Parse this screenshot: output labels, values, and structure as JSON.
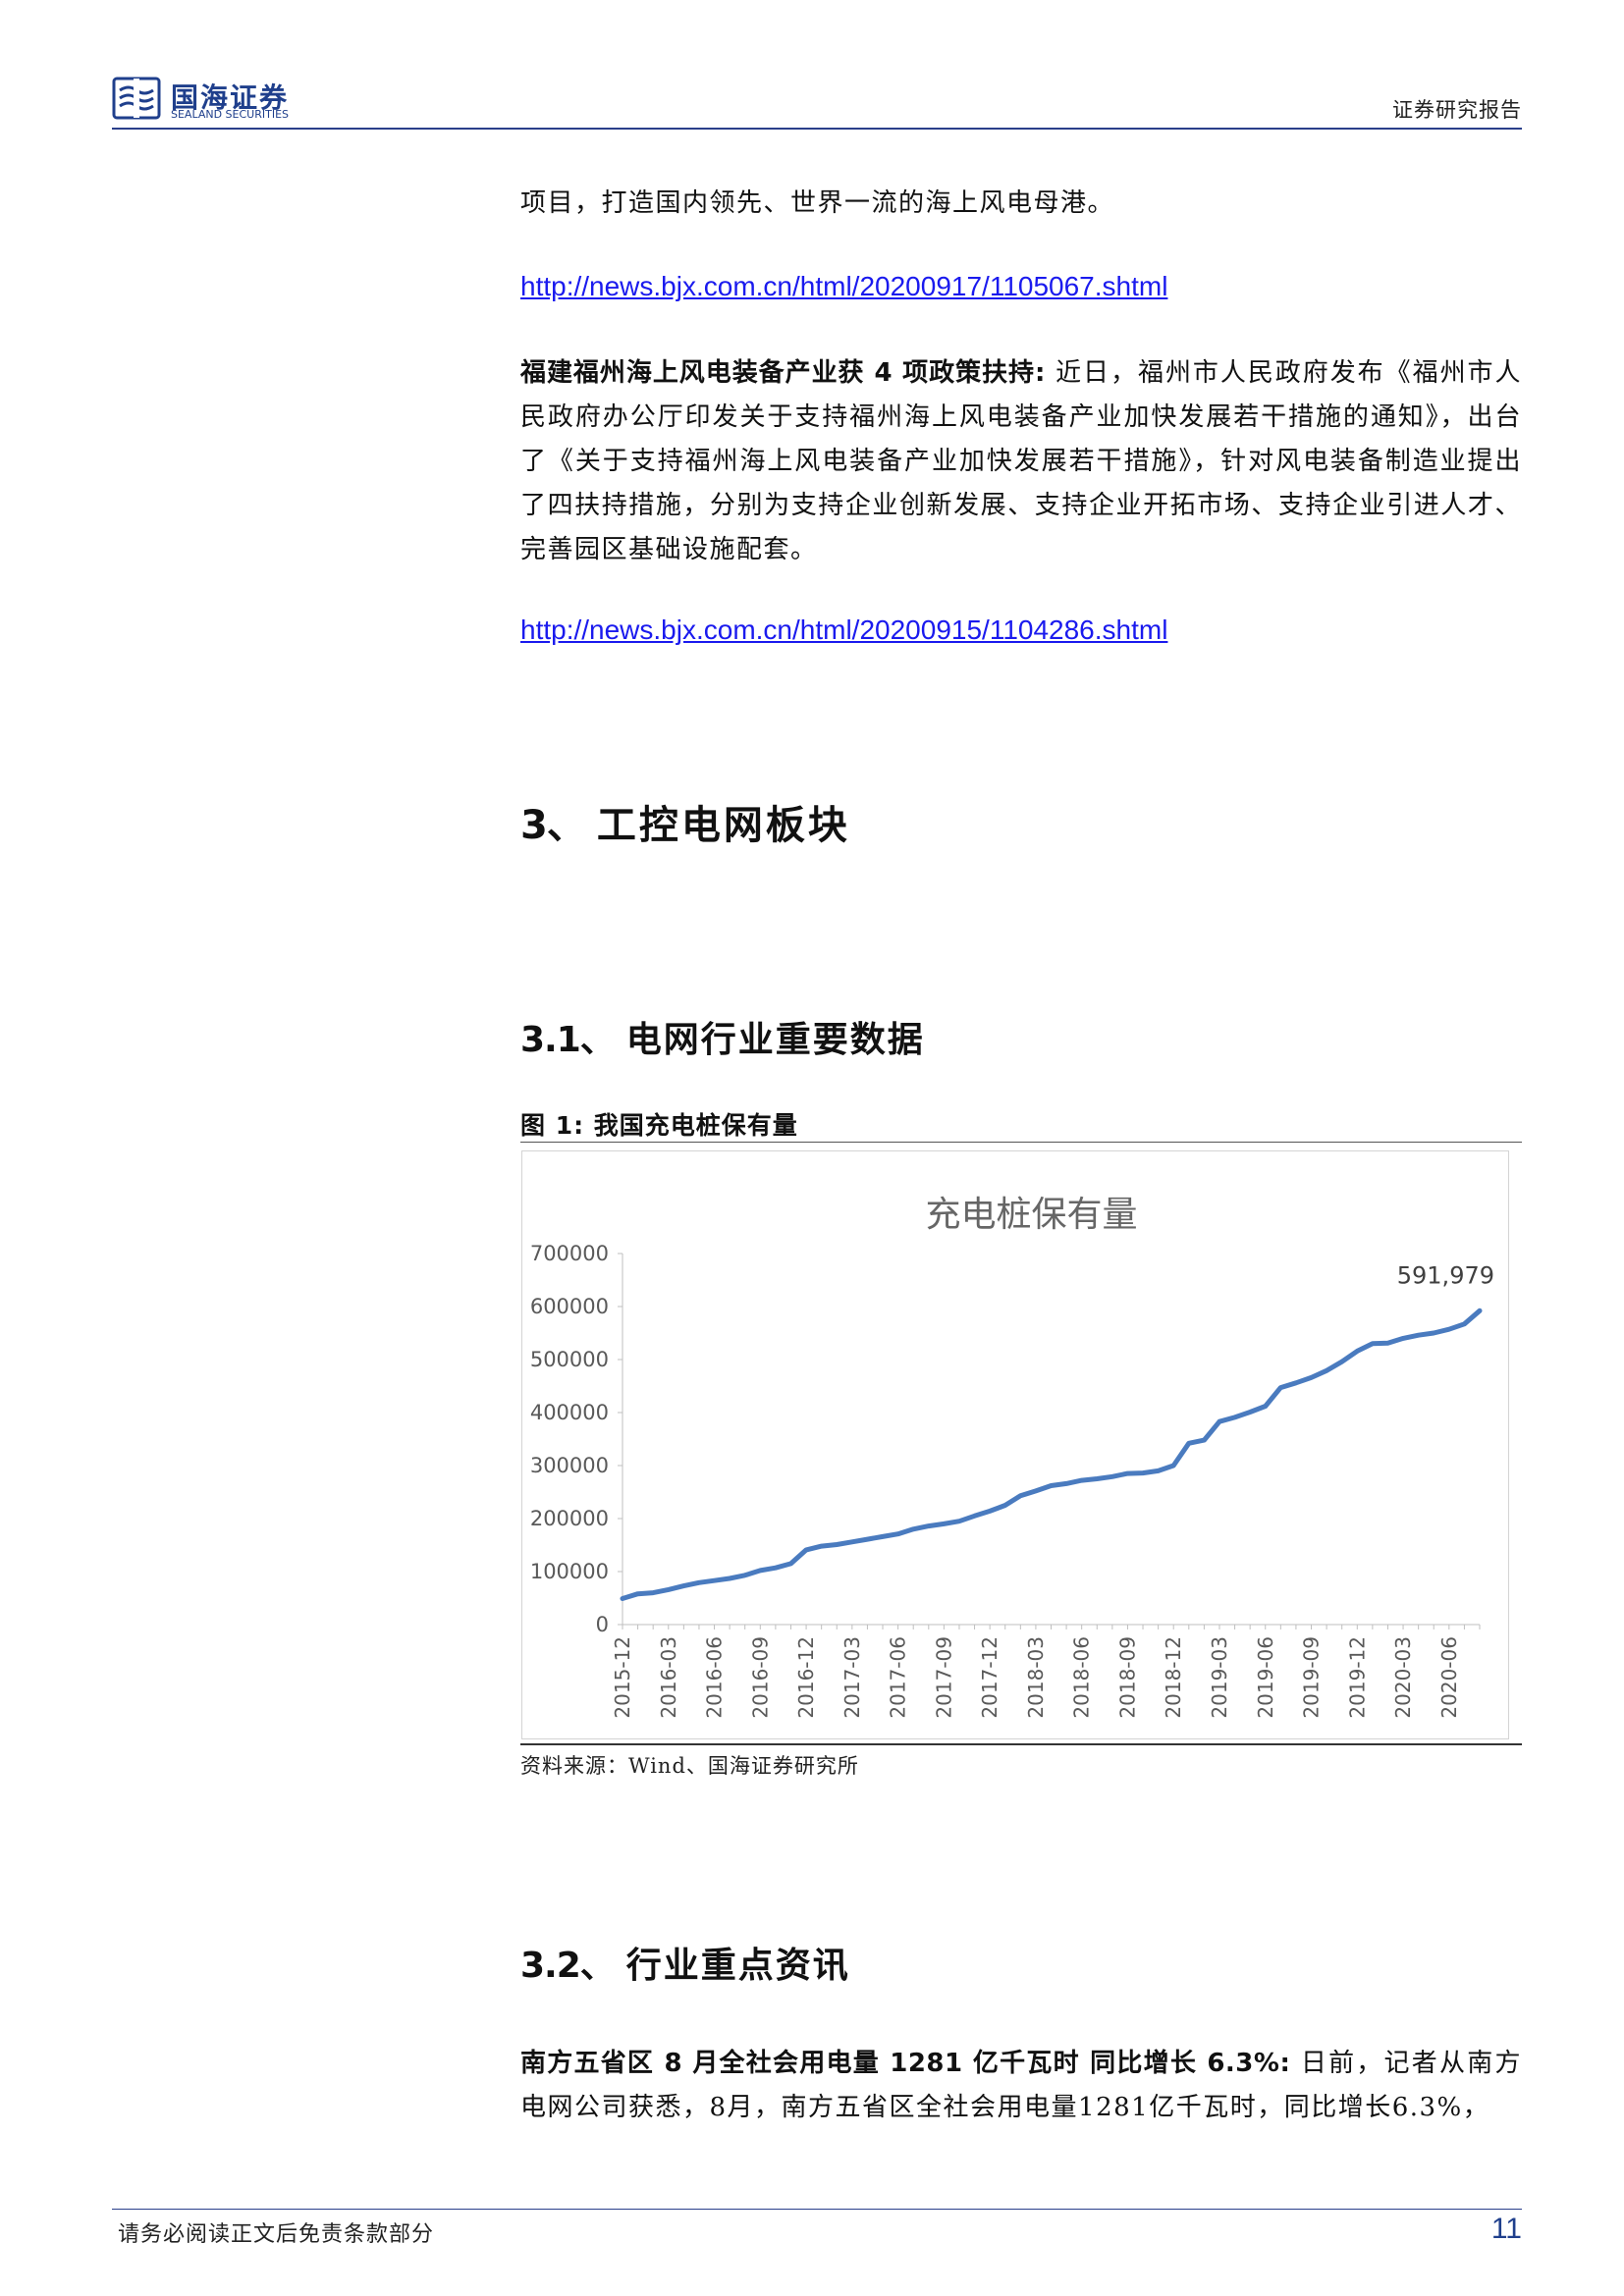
{
  "header": {
    "logo_cn": "国海证券",
    "logo_en": "SEALAND SECURITIES",
    "right": "证券研究报告"
  },
  "content": {
    "para1": "项目，打造国内领先、世界一流的海上风电母港。",
    "link1": "http://news.bjx.com.cn/html/20200917/1105067.shtml",
    "para2_bold": "福建福州海上风电装备产业获 4 项政策扶持:",
    "para2_text": "近日，福州市人民政府发布《福州市人民政府办公厅印发关于支持福州海上风电装备产业加快发展若干措施的通知》，出台了《关于支持福州海上风电装备产业加快发展若干措施》，针对风电装备制造业提出了四扶持措施，分别为支持企业创新发展、支持企业开拓市场、支持企业引进人才、完善园区基础设施配套。",
    "link2": "http://news.bjx.com.cn/html/20200915/1104286.shtml",
    "section3_num": "3、",
    "section3_title": "工控电网板块",
    "section31_num": "3.1、",
    "section31_title": "电网行业重要数据",
    "figure_title": "图 1:  我国充电桩保有量",
    "figure_source": "资料来源：Wind、国海证券研究所",
    "section32_num": "3.2、",
    "section32_title": "行业重点资讯",
    "para3_bold": "南方五省区 8 月全社会用电量 1281 亿千瓦时 同比增长 6.3%:",
    "para3_text": "日前，记者从南方电网公司获悉，8月，南方五省区全社会用电量1281亿千瓦时，同比增长6.3%，"
  },
  "chart_data": {
    "type": "line",
    "title": "充电桩保有量",
    "xlabel": "",
    "ylabel": "",
    "ylim": [
      0,
      700000
    ],
    "yticks": [
      "0",
      "100000",
      "200000",
      "300000",
      "400000",
      "500000",
      "600000",
      "700000"
    ],
    "grid": false,
    "legend": "none",
    "line_color": "#4a7bbf",
    "tick_labels": [
      "2015-12",
      "2016-03",
      "2016-06",
      "2016-09",
      "2016-12",
      "2017-03",
      "2017-06",
      "2017-09",
      "2017-12",
      "2018-03",
      "2018-06",
      "2018-09",
      "2018-12",
      "2019-03",
      "2019-06",
      "2019-09",
      "2019-12",
      "2020-03",
      "2020-06"
    ],
    "end_label": "591,979",
    "series": [
      {
        "x": [
          "2015-12",
          "2016-01",
          "2016-02",
          "2016-03",
          "2016-04",
          "2016-05",
          "2016-06",
          "2016-07",
          "2016-08",
          "2016-09",
          "2016-10",
          "2016-11",
          "2016-12",
          "2017-01",
          "2017-02",
          "2017-03",
          "2017-04",
          "2017-05",
          "2017-06",
          "2017-07",
          "2017-08",
          "2017-09",
          "2017-10",
          "2017-11",
          "2017-12",
          "2018-01",
          "2018-02",
          "2018-03",
          "2018-04",
          "2018-05",
          "2018-06",
          "2018-07",
          "2018-08",
          "2018-09",
          "2018-10",
          "2018-11",
          "2018-12",
          "2019-01",
          "2019-02",
          "2019-03",
          "2019-04",
          "2019-05",
          "2019-06",
          "2019-07",
          "2019-08",
          "2019-09",
          "2019-10",
          "2019-11",
          "2019-12",
          "2020-01",
          "2020-02",
          "2020-03",
          "2020-04",
          "2020-05",
          "2020-06",
          "2020-07",
          "2020-08"
        ],
        "values": [
          49000,
          58000,
          60000,
          66000,
          73000,
          79000,
          83000,
          87000,
          93000,
          102000,
          107000,
          115000,
          141000,
          148000,
          151000,
          156000,
          161000,
          166000,
          171000,
          180000,
          186000,
          190000,
          195000,
          205000,
          214000,
          225000,
          243000,
          252000,
          262000,
          266000,
          272000,
          275000,
          279000,
          285000,
          286000,
          290000,
          300000,
          342000,
          348000,
          383000,
          391000,
          401000,
          412000,
          447000,
          456000,
          466000,
          479000,
          496000,
          516000,
          530000,
          531000,
          540000,
          546000,
          550000,
          557000,
          567000,
          591979
        ]
      }
    ]
  },
  "footer": {
    "disclaimer": "请务必阅读正文后免责条款部分",
    "page": "11"
  },
  "colors": {
    "brand": "#1f3f8c",
    "link": "#1a1aee",
    "series": "#4a7bbf"
  }
}
